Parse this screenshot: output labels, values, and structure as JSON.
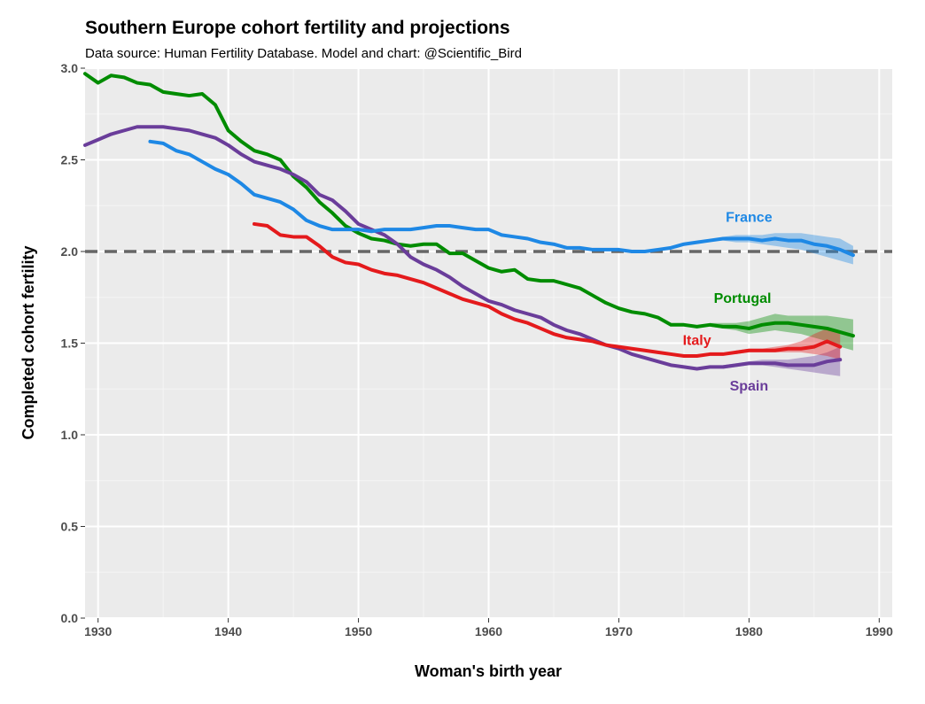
{
  "chart_data": {
    "type": "line",
    "title": "Southern Europe cohort fertility and projections",
    "subtitle": "Data source: Human Fertility Database.  Model and chart: @Scientific_Bird",
    "xlabel": "Woman's birth year",
    "ylabel": "Completed cohort fertility",
    "xlim": [
      1929,
      1991
    ],
    "ylim": [
      0,
      3
    ],
    "xticks": [
      1930,
      1940,
      1950,
      1960,
      1970,
      1980,
      1990
    ],
    "yticks": [
      "0.0",
      "0.5",
      "1.0",
      "1.5",
      "2.0",
      "2.5",
      "3.0"
    ],
    "reference_line": 2.0,
    "series": [
      {
        "name": "Portugal",
        "color": "#008c00",
        "x": [
          1929,
          1930,
          1931,
          1932,
          1933,
          1934,
          1935,
          1936,
          1937,
          1938,
          1939,
          1940,
          1941,
          1942,
          1943,
          1944,
          1945,
          1946,
          1947,
          1948,
          1949,
          1950,
          1951,
          1952,
          1953,
          1954,
          1955,
          1956,
          1957,
          1958,
          1959,
          1960,
          1961,
          1962,
          1963,
          1964,
          1965,
          1966,
          1967,
          1968,
          1969,
          1970,
          1971,
          1972,
          1973,
          1974,
          1975,
          1976,
          1977,
          1978,
          1979,
          1980,
          1981,
          1982,
          1983,
          1984,
          1985,
          1986,
          1987,
          1988
        ],
        "values": [
          2.97,
          2.92,
          2.96,
          2.95,
          2.92,
          2.91,
          2.87,
          2.86,
          2.85,
          2.86,
          2.8,
          2.66,
          2.6,
          2.55,
          2.53,
          2.5,
          2.41,
          2.35,
          2.27,
          2.21,
          2.14,
          2.1,
          2.07,
          2.06,
          2.04,
          2.03,
          2.04,
          2.04,
          1.99,
          1.99,
          1.95,
          1.91,
          1.89,
          1.9,
          1.85,
          1.84,
          1.84,
          1.82,
          1.8,
          1.76,
          1.72,
          1.69,
          1.67,
          1.66,
          1.64,
          1.6,
          1.6,
          1.59,
          1.6,
          1.59,
          1.59,
          1.58,
          1.6,
          1.61,
          1.61,
          1.6,
          1.59,
          1.58,
          1.56,
          1.54
        ],
        "band_x": [
          1977,
          1978,
          1979,
          1980,
          1981,
          1982,
          1983,
          1984,
          1985,
          1986,
          1987,
          1988
        ],
        "band_low": [
          1.59,
          1.58,
          1.57,
          1.55,
          1.56,
          1.57,
          1.56,
          1.55,
          1.53,
          1.51,
          1.48,
          1.46
        ],
        "band_high": [
          1.61,
          1.61,
          1.61,
          1.62,
          1.64,
          1.66,
          1.65,
          1.65,
          1.65,
          1.65,
          1.64,
          1.63
        ],
        "label": "Portugal",
        "label_pos": [
          1979.5,
          1.75
        ]
      },
      {
        "name": "Spain",
        "color": "#6a3d9a",
        "x": [
          1929,
          1930,
          1931,
          1932,
          1933,
          1934,
          1935,
          1936,
          1937,
          1938,
          1939,
          1940,
          1941,
          1942,
          1943,
          1944,
          1945,
          1946,
          1947,
          1948,
          1949,
          1950,
          1951,
          1952,
          1953,
          1954,
          1955,
          1956,
          1957,
          1958,
          1959,
          1960,
          1961,
          1962,
          1963,
          1964,
          1965,
          1966,
          1967,
          1968,
          1969,
          1970,
          1971,
          1972,
          1973,
          1974,
          1975,
          1976,
          1977,
          1978,
          1979,
          1980,
          1981,
          1982,
          1983,
          1984,
          1985,
          1986,
          1987
        ],
        "values": [
          2.58,
          2.61,
          2.64,
          2.66,
          2.68,
          2.68,
          2.68,
          2.67,
          2.66,
          2.64,
          2.62,
          2.58,
          2.53,
          2.49,
          2.47,
          2.45,
          2.42,
          2.38,
          2.31,
          2.28,
          2.22,
          2.15,
          2.12,
          2.09,
          2.04,
          1.97,
          1.93,
          1.9,
          1.86,
          1.81,
          1.77,
          1.73,
          1.71,
          1.68,
          1.66,
          1.64,
          1.6,
          1.57,
          1.55,
          1.52,
          1.49,
          1.47,
          1.44,
          1.42,
          1.4,
          1.38,
          1.37,
          1.36,
          1.37,
          1.37,
          1.38,
          1.39,
          1.39,
          1.39,
          1.38,
          1.38,
          1.38,
          1.4,
          1.41
        ],
        "band_x": [
          1978,
          1979,
          1980,
          1981,
          1982,
          1983,
          1984,
          1985,
          1986,
          1987
        ],
        "band_low": [
          1.36,
          1.37,
          1.38,
          1.38,
          1.37,
          1.36,
          1.35,
          1.34,
          1.33,
          1.32
        ],
        "band_high": [
          1.38,
          1.39,
          1.4,
          1.41,
          1.41,
          1.41,
          1.42,
          1.43,
          1.45,
          1.48
        ],
        "label": "Spain",
        "label_pos": [
          1980,
          1.27
        ]
      },
      {
        "name": "Italy",
        "color": "#e41a1c",
        "x": [
          1942,
          1943,
          1944,
          1945,
          1946,
          1947,
          1948,
          1949,
          1950,
          1951,
          1952,
          1953,
          1954,
          1955,
          1956,
          1957,
          1958,
          1959,
          1960,
          1961,
          1962,
          1963,
          1964,
          1965,
          1966,
          1967,
          1968,
          1969,
          1970,
          1971,
          1972,
          1973,
          1974,
          1975,
          1976,
          1977,
          1978,
          1979,
          1980,
          1981,
          1982,
          1983,
          1984,
          1985,
          1986,
          1987
        ],
        "values": [
          2.15,
          2.14,
          2.09,
          2.08,
          2.08,
          2.03,
          1.97,
          1.94,
          1.93,
          1.9,
          1.88,
          1.87,
          1.85,
          1.83,
          1.8,
          1.77,
          1.74,
          1.72,
          1.7,
          1.66,
          1.63,
          1.61,
          1.58,
          1.55,
          1.53,
          1.52,
          1.51,
          1.49,
          1.48,
          1.47,
          1.46,
          1.45,
          1.44,
          1.43,
          1.43,
          1.44,
          1.44,
          1.45,
          1.46,
          1.46,
          1.46,
          1.47,
          1.47,
          1.48,
          1.51,
          1.48
        ],
        "band_x": [
          1979,
          1980,
          1981,
          1982,
          1983,
          1984,
          1985,
          1986,
          1987
        ],
        "band_low": [
          1.44,
          1.45,
          1.45,
          1.45,
          1.45,
          1.45,
          1.44,
          1.43,
          1.41
        ],
        "band_high": [
          1.46,
          1.47,
          1.47,
          1.48,
          1.49,
          1.51,
          1.55,
          1.58,
          1.56
        ],
        "label": "Italy",
        "label_pos": [
          1976,
          1.52
        ]
      },
      {
        "name": "France",
        "color": "#1e88e5",
        "x": [
          1934,
          1935,
          1936,
          1937,
          1938,
          1939,
          1940,
          1941,
          1942,
          1943,
          1944,
          1945,
          1946,
          1947,
          1948,
          1949,
          1950,
          1951,
          1952,
          1953,
          1954,
          1955,
          1956,
          1957,
          1958,
          1959,
          1960,
          1961,
          1962,
          1963,
          1964,
          1965,
          1966,
          1967,
          1968,
          1969,
          1970,
          1971,
          1972,
          1973,
          1974,
          1975,
          1976,
          1977,
          1978,
          1979,
          1980,
          1981,
          1982,
          1983,
          1984,
          1985,
          1986,
          1987,
          1988
        ],
        "values": [
          2.6,
          2.59,
          2.55,
          2.53,
          2.49,
          2.45,
          2.42,
          2.37,
          2.31,
          2.29,
          2.27,
          2.23,
          2.17,
          2.14,
          2.12,
          2.12,
          2.12,
          2.11,
          2.12,
          2.12,
          2.12,
          2.13,
          2.14,
          2.14,
          2.13,
          2.12,
          2.12,
          2.09,
          2.08,
          2.07,
          2.05,
          2.04,
          2.02,
          2.02,
          2.01,
          2.01,
          2.01,
          2.0,
          2.0,
          2.01,
          2.02,
          2.04,
          2.05,
          2.06,
          2.07,
          2.07,
          2.07,
          2.06,
          2.07,
          2.06,
          2.06,
          2.04,
          2.03,
          2.01,
          1.98
        ],
        "band_x": [
          1978,
          1979,
          1980,
          1981,
          1982,
          1983,
          1984,
          1985,
          1986,
          1987,
          1988
        ],
        "band_low": [
          2.06,
          2.05,
          2.05,
          2.04,
          2.03,
          2.02,
          2.01,
          1.99,
          1.97,
          1.95,
          1.93
        ],
        "band_high": [
          2.08,
          2.09,
          2.09,
          2.09,
          2.1,
          2.1,
          2.1,
          2.09,
          2.08,
          2.07,
          2.03
        ],
        "label": "France",
        "label_pos": [
          1980,
          2.19
        ]
      }
    ]
  }
}
